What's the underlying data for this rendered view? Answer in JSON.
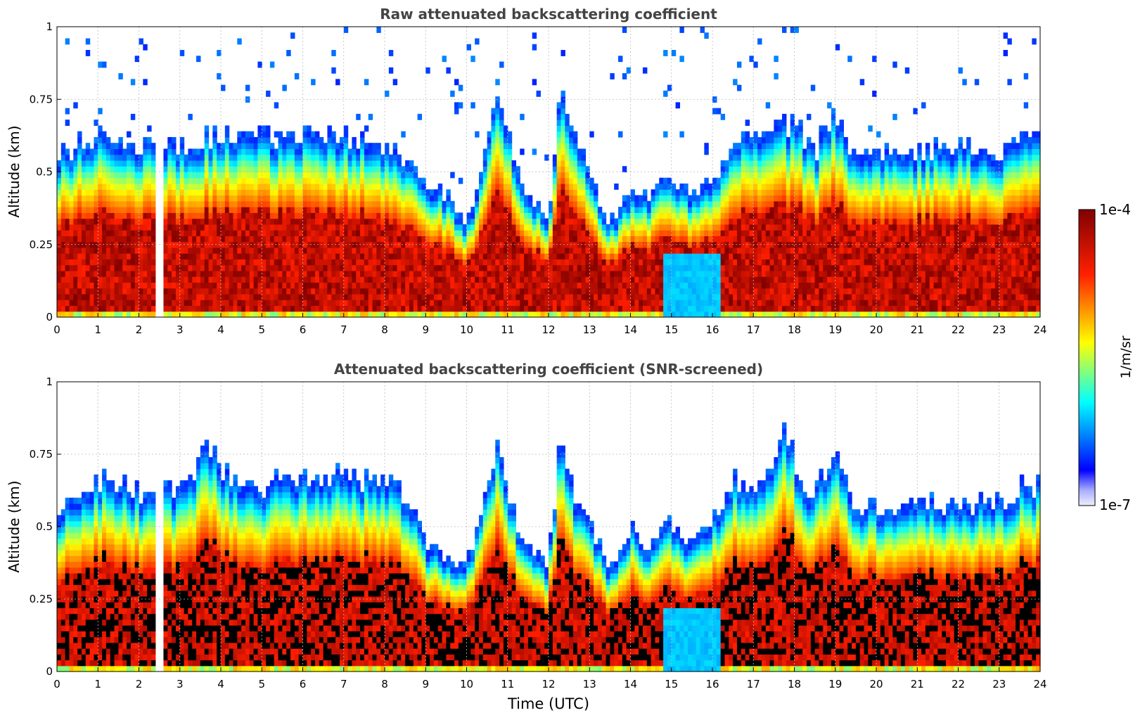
{
  "chart_data": [
    {
      "type": "heatmap",
      "title": "Raw attenuated backscattering coefficient",
      "xlabel": "",
      "ylabel": "Altitude (km)",
      "xlim": [
        0,
        24
      ],
      "ylim": [
        0,
        1
      ],
      "xticks": [
        "0",
        "1",
        "2",
        "3",
        "4",
        "5",
        "6",
        "7",
        "8",
        "9",
        "10",
        "11",
        "12",
        "13",
        "14",
        "15",
        "16",
        "17",
        "18",
        "19",
        "20",
        "21",
        "22",
        "23",
        "24"
      ],
      "yticks": [
        "0",
        "0.25",
        "0.5",
        "0.75",
        "1"
      ],
      "grid": true,
      "screened": false,
      "data_gap_hours": [
        2.45,
        2.55
      ],
      "boundary_layer_top_km": [
        [
          0,
          0.55
        ],
        [
          1,
          0.6
        ],
        [
          2,
          0.58
        ],
        [
          3,
          0.58
        ],
        [
          4,
          0.62
        ],
        [
          5,
          0.6
        ],
        [
          6,
          0.6
        ],
        [
          7,
          0.6
        ],
        [
          8,
          0.58
        ],
        [
          8.7,
          0.5
        ],
        [
          9,
          0.45
        ],
        [
          9.5,
          0.4
        ],
        [
          10,
          0.3
        ],
        [
          10.3,
          0.45
        ],
        [
          10.8,
          0.75
        ],
        [
          11.2,
          0.5
        ],
        [
          11.6,
          0.4
        ],
        [
          12,
          0.3
        ],
        [
          12.3,
          0.75
        ],
        [
          12.7,
          0.6
        ],
        [
          13,
          0.45
        ],
        [
          13.5,
          0.3
        ],
        [
          14,
          0.42
        ],
        [
          14.5,
          0.4
        ],
        [
          15,
          0.48
        ],
        [
          15.5,
          0.4
        ],
        [
          16,
          0.45
        ],
        [
          16.5,
          0.6
        ],
        [
          17,
          0.62
        ],
        [
          18,
          0.65
        ],
        [
          18.5,
          0.55
        ],
        [
          19,
          0.68
        ],
        [
          19.5,
          0.52
        ],
        [
          20,
          0.55
        ],
        [
          21,
          0.55
        ],
        [
          22,
          0.57
        ],
        [
          23,
          0.55
        ],
        [
          23.5,
          0.6
        ],
        [
          24,
          0.6
        ]
      ],
      "colorbar": {
        "label": "1/m/sr",
        "min_label": "1e-7",
        "max_label": "1e-4",
        "scale": "log"
      }
    },
    {
      "type": "heatmap",
      "title": "Attenuated backscattering coefficient (SNR-screened)",
      "xlabel": "Time (UTC)",
      "ylabel": "Altitude (km)",
      "xlim": [
        0,
        24
      ],
      "ylim": [
        0,
        1
      ],
      "xticks": [
        "0",
        "1",
        "2",
        "3",
        "4",
        "5",
        "6",
        "7",
        "8",
        "9",
        "10",
        "11",
        "12",
        "13",
        "14",
        "15",
        "16",
        "17",
        "18",
        "19",
        "20",
        "21",
        "22",
        "23",
        "24"
      ],
      "yticks": [
        "0",
        "0.25",
        "0.5",
        "0.75",
        "1"
      ],
      "grid": true,
      "screened": true,
      "data_gap_hours": [
        2.45,
        2.55
      ],
      "boundary_layer_top_km": [
        [
          0,
          0.55
        ],
        [
          1,
          0.65
        ],
        [
          2,
          0.6
        ],
        [
          3,
          0.6
        ],
        [
          3.7,
          0.78
        ],
        [
          4,
          0.68
        ],
        [
          5,
          0.62
        ],
        [
          5.5,
          0.68
        ],
        [
          6,
          0.65
        ],
        [
          7,
          0.65
        ],
        [
          8,
          0.64
        ],
        [
          8.7,
          0.55
        ],
        [
          9,
          0.42
        ],
        [
          9.5,
          0.38
        ],
        [
          10,
          0.35
        ],
        [
          10.3,
          0.5
        ],
        [
          10.8,
          0.78
        ],
        [
          11.2,
          0.5
        ],
        [
          11.6,
          0.4
        ],
        [
          12,
          0.35
        ],
        [
          12.3,
          0.82
        ],
        [
          12.7,
          0.55
        ],
        [
          13,
          0.5
        ],
        [
          13.5,
          0.32
        ],
        [
          14,
          0.48
        ],
        [
          14.5,
          0.4
        ],
        [
          15,
          0.5
        ],
        [
          15.5,
          0.42
        ],
        [
          16,
          0.5
        ],
        [
          16.5,
          0.65
        ],
        [
          17,
          0.62
        ],
        [
          17.8,
          0.8
        ],
        [
          18.3,
          0.6
        ],
        [
          19,
          0.72
        ],
        [
          19.5,
          0.55
        ],
        [
          20,
          0.55
        ],
        [
          21,
          0.55
        ],
        [
          22,
          0.56
        ],
        [
          23,
          0.56
        ],
        [
          23.5,
          0.62
        ],
        [
          24,
          0.62
        ]
      ],
      "colorbar": {
        "label": "1/m/sr",
        "min_label": "1e-7",
        "max_label": "1e-4",
        "scale": "log"
      }
    }
  ],
  "colors": {
    "jet_stops": [
      "#000080",
      "#0000ff",
      "#00ffff",
      "#ffff00",
      "#ff0000",
      "#800000"
    ],
    "screened_max": "#000000",
    "title": "#444444"
  }
}
